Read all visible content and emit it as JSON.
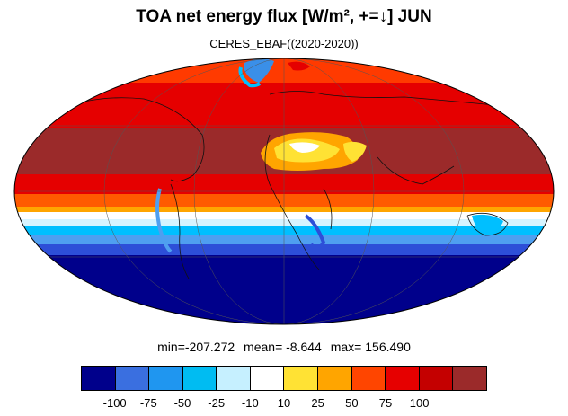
{
  "header": {
    "title": "TOA net energy flux  [W/m², +=↓] JUN",
    "subtitle": "CERES_EBAF((2020-2020))"
  },
  "stats": {
    "min": "min=-207.272",
    "mean": "mean=  -8.644",
    "max": "max= 156.490"
  },
  "colorbar": {
    "colors": [
      "#00008b",
      "#3a6fe0",
      "#1f96f0",
      "#00bcf2",
      "#c6f0ff",
      "#ffffff",
      "#ffe234",
      "#ffa500",
      "#ff4500",
      "#e60000",
      "#c40000",
      "#9b2a2a"
    ],
    "labels": [
      "-100",
      "-75",
      "-50",
      "-25",
      "-10",
      "10",
      "25",
      "50",
      "75",
      "100"
    ]
  },
  "map": {
    "projection": "Mollweide",
    "zonal_colors": {
      "deep_blue": "#00008b",
      "medium_blue": "#2d4fd8",
      "light_blue": "#4f9ff0",
      "cyan": "#00bfff",
      "pale": "#d6f4ff",
      "white": "#ffffff",
      "yellow": "#ffe234",
      "orange": "#ffa500",
      "red_orange": "#ff3a00",
      "red": "#e50000",
      "dark_red": "#9b2a2a"
    }
  }
}
